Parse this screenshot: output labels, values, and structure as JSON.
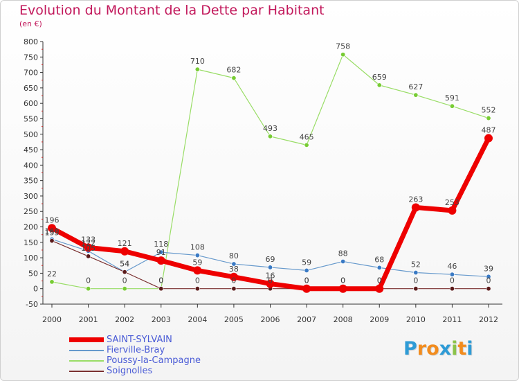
{
  "title": "Evolution du Montant de la Dette par Habitant",
  "subtitle": "(en €)",
  "logo": {
    "text": "Proxiti",
    "letters": [
      "P",
      "r",
      "o",
      "x",
      "i",
      "t",
      "i"
    ],
    "colors": [
      "#2e9bd6",
      "#f28c1e",
      "#f28c1e",
      "#2e9bd6",
      "#8bc34a",
      "#f28c1e",
      "#2e9bd6"
    ]
  },
  "chart_data": {
    "type": "line",
    "title": "Evolution du Montant de la Dette par Habitant",
    "subtitle": "(en €)",
    "xlabel": "",
    "ylabel": "",
    "x": [
      "2000",
      "2001",
      "2002",
      "2003",
      "2004",
      "2005",
      "2006",
      "2007",
      "2008",
      "2009",
      "2010",
      "2011",
      "2012"
    ],
    "ylim": [
      -50,
      800
    ],
    "yticks": [
      "-50",
      "0",
      "50",
      "100",
      "150",
      "200",
      "250",
      "300",
      "350",
      "400",
      "450",
      "500",
      "550",
      "600",
      "650",
      "700",
      "750",
      "800"
    ],
    "grid": false,
    "legend_position": "bottom-left",
    "series": [
      {
        "name": "SAINT-SYLVAIN",
        "color": "#ee0000",
        "values": [
          196,
          133,
          121,
          91,
          59,
          38,
          16,
          0,
          0,
          0,
          263,
          253,
          487
        ],
        "labels": [
          "196",
          "133",
          "121",
          "91",
          "59",
          "38",
          "16",
          "0",
          "0",
          "0",
          "263",
          "253",
          "487"
        ]
      },
      {
        "name": "Fierville-Bray",
        "color": "#6699cc",
        "values": [
          160,
          122,
          54,
          118,
          108,
          80,
          69,
          59,
          88,
          68,
          52,
          46,
          39
        ],
        "labels": [
          "160",
          "122",
          "54",
          "118",
          "108",
          "80",
          "69",
          "59",
          "88",
          "68",
          "52",
          "46",
          "39"
        ]
      },
      {
        "name": "Poussy-la-Campagne",
        "color": "#99dd66",
        "values": [
          22,
          0,
          0,
          0,
          710,
          682,
          493,
          465,
          758,
          659,
          627,
          591,
          552
        ],
        "labels": [
          "22",
          "0",
          "0",
          "0",
          "710",
          "682",
          "493",
          "465",
          "758",
          "659",
          "627",
          "591",
          "552"
        ]
      },
      {
        "name": "Soignolles",
        "color": "#7a3030",
        "values": [
          155,
          105,
          54,
          0,
          0,
          0,
          0,
          0,
          0,
          0,
          0,
          0,
          0
        ],
        "labels": [
          "155",
          "105",
          "54",
          "0",
          "0",
          "0",
          "0",
          "0",
          "0",
          "0",
          "0",
          "0",
          "0"
        ]
      }
    ]
  }
}
